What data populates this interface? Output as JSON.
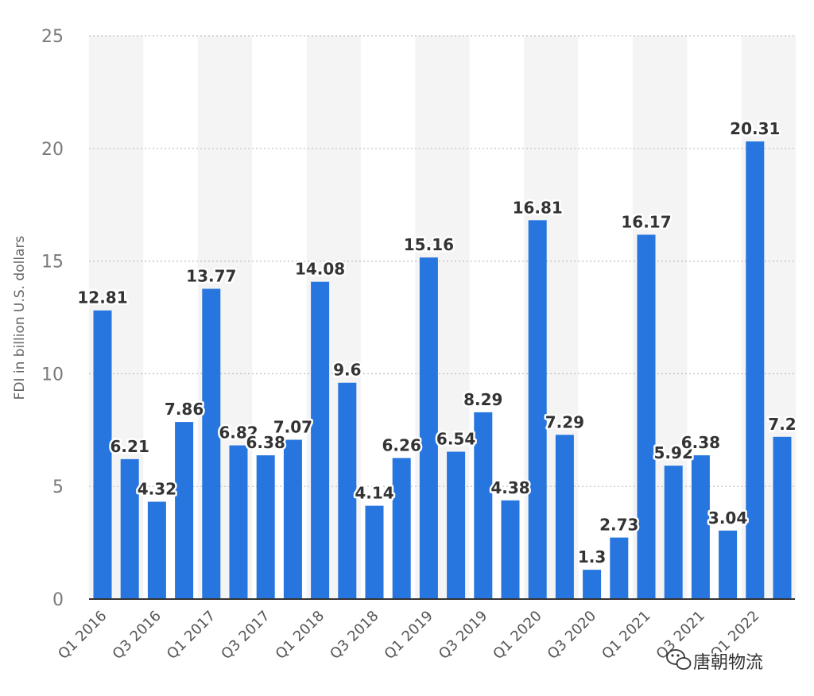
{
  "chart_data": {
    "type": "bar",
    "ylabel": "FDI in billion U.S. dollars",
    "ylim": [
      0,
      25
    ],
    "yticks": [
      0,
      5,
      10,
      15,
      20,
      25
    ],
    "grid": true,
    "bar_color": "#2775de",
    "categories": [
      "Q1 2016",
      "Q2 2016",
      "Q3 2016",
      "Q4 2016",
      "Q1 2017",
      "Q2 2017",
      "Q3 2017",
      "Q4 2017",
      "Q1 2018",
      "Q2 2018",
      "Q3 2018",
      "Q4 2018",
      "Q1 2019",
      "Q2 2019",
      "Q3 2019",
      "Q4 2019",
      "Q1 2020",
      "Q2 2020",
      "Q3 2020",
      "Q4 2020",
      "Q1 2021",
      "Q2 2021",
      "Q3 2021",
      "Q4 2021",
      "Q1 2022",
      "Q2 2022"
    ],
    "visible_tick_labels": [
      "Q1 2016",
      "Q3 2016",
      "Q1 2017",
      "Q3 2017",
      "Q1 2018",
      "Q3 2018",
      "Q1 2019",
      "Q3 2019",
      "Q1 2020",
      "Q3 2020",
      "Q1 2021",
      "Q3 2021",
      "Q1 2022"
    ],
    "values": [
      12.81,
      6.21,
      4.32,
      7.86,
      13.77,
      6.82,
      6.38,
      7.07,
      14.08,
      9.6,
      4.14,
      6.26,
      15.16,
      6.54,
      8.29,
      4.38,
      16.81,
      7.29,
      1.3,
      2.73,
      16.17,
      5.92,
      6.38,
      3.04,
      20.31,
      7.2
    ],
    "value_labels": [
      "12.81",
      "6.21",
      "4.32",
      "7.86",
      "13.77",
      "6.82",
      "6.38",
      "7.07",
      "14.08",
      "9.6",
      "4.14",
      "6.26",
      "15.16",
      "6.54",
      "8.29",
      "4.38",
      "16.81",
      "7.29",
      "1.3",
      "2.73",
      "16.17",
      "5.92",
      "6.38",
      "3.04",
      "20.31",
      "7.2"
    ]
  },
  "watermark": {
    "icon": "wechat-icon",
    "text": "唐朝物流"
  }
}
